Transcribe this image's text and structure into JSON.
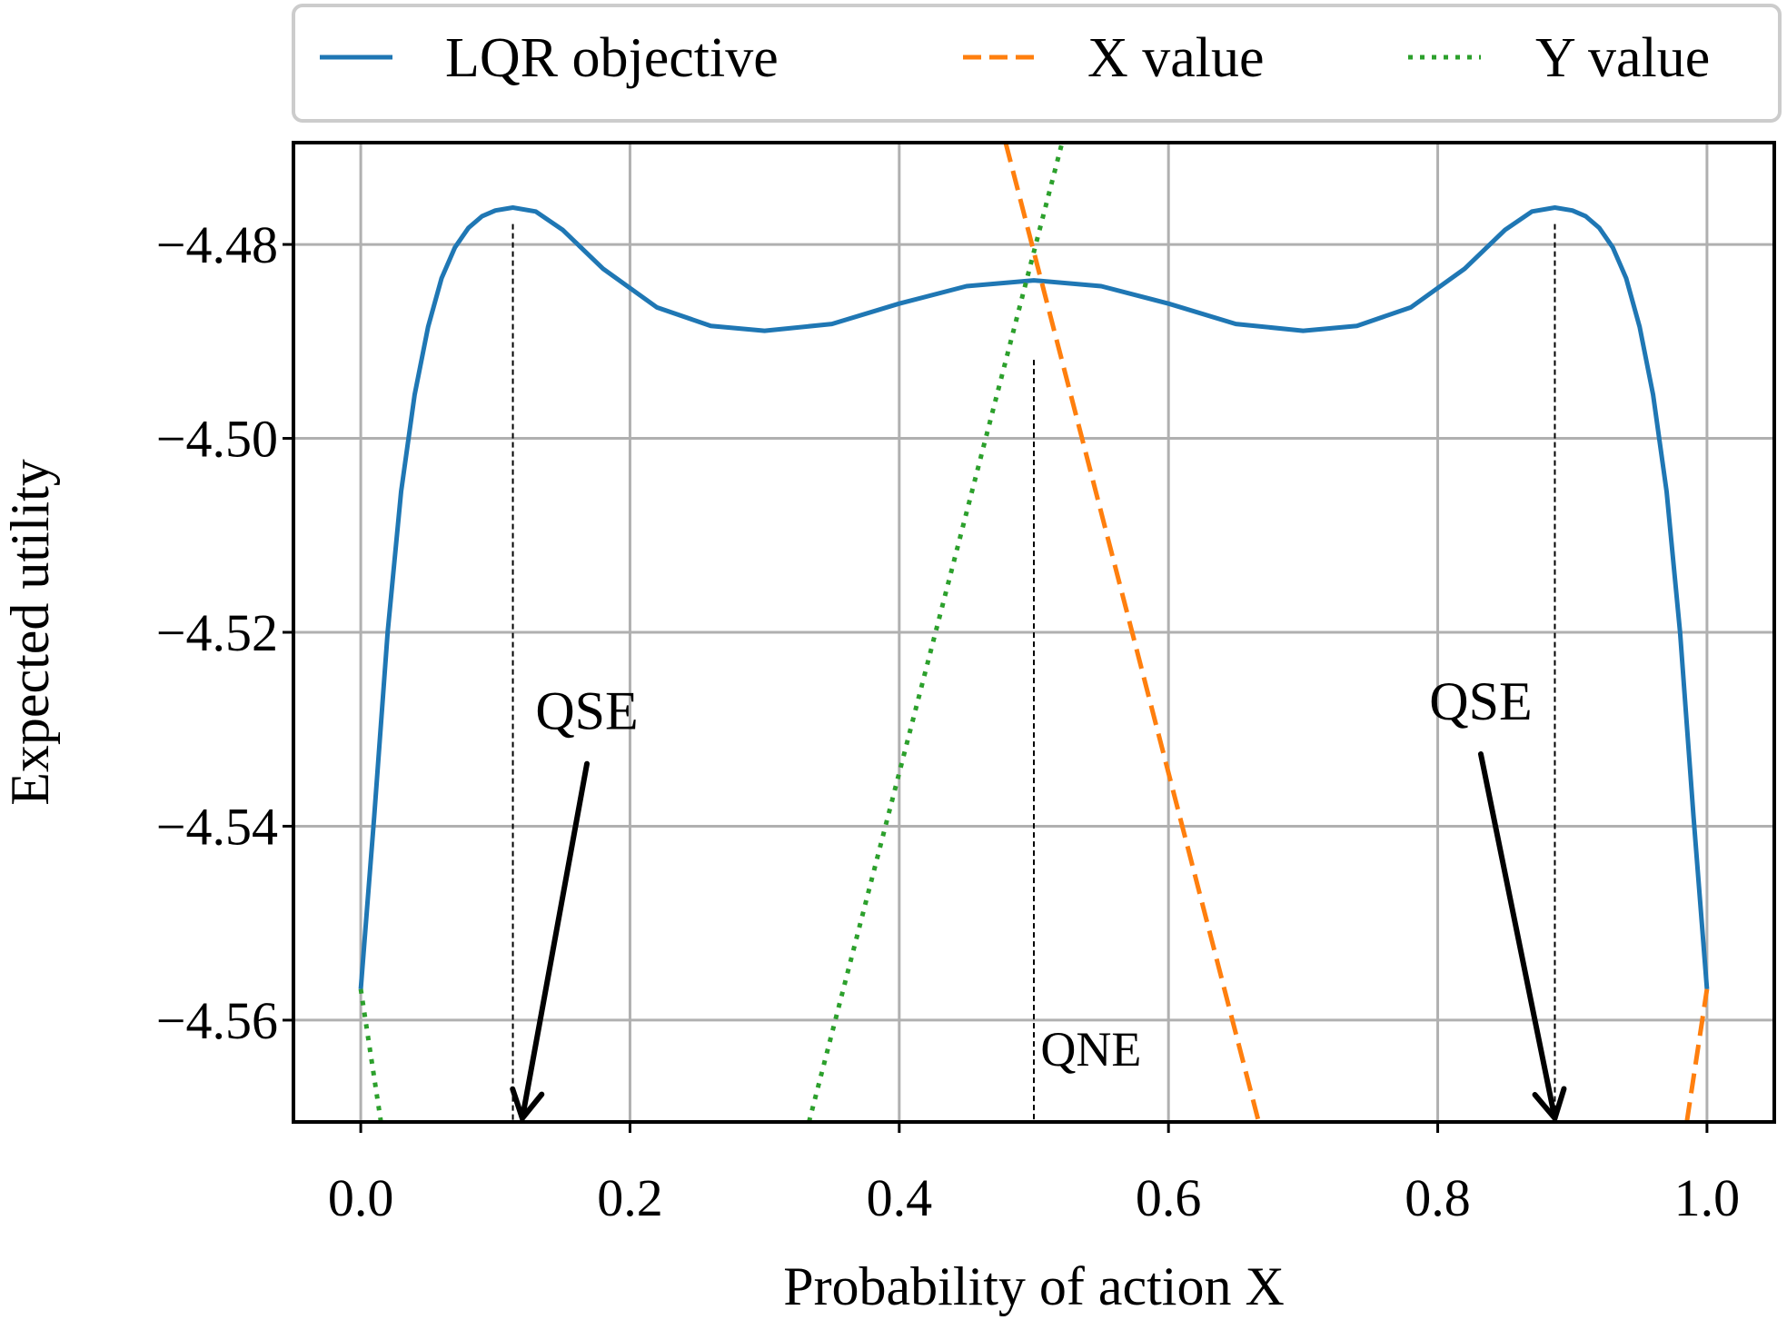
{
  "chart_data": {
    "type": "line",
    "title": "",
    "xlabel": "Probability of action X",
    "ylabel": "Expected utility",
    "xlim": [
      -0.05,
      1.05
    ],
    "ylim": [
      -4.5705,
      -4.4695
    ],
    "xticks": [
      0.0,
      0.2,
      0.4,
      0.6,
      0.8,
      1.0
    ],
    "xtick_labels": [
      "0.0",
      "0.2",
      "0.4",
      "0.6",
      "0.8",
      "1.0"
    ],
    "yticks": [
      -4.48,
      -4.5,
      -4.52,
      -4.54,
      -4.56
    ],
    "ytick_labels": [
      "−4.48",
      "−4.50",
      "−4.52",
      "−4.54",
      "−4.56"
    ],
    "grid": true,
    "legend": {
      "placement": "top, outside plot, horizontal"
    },
    "series": [
      {
        "name": "LQR objective",
        "style": "solid",
        "color": "#1f77b4",
        "x": [
          0.0,
          0.01,
          0.02,
          0.03,
          0.04,
          0.05,
          0.06,
          0.07,
          0.08,
          0.09,
          0.1,
          0.113,
          0.13,
          0.15,
          0.18,
          0.22,
          0.26,
          0.3,
          0.35,
          0.4,
          0.45,
          0.5,
          0.55,
          0.6,
          0.65,
          0.7,
          0.74,
          0.78,
          0.82,
          0.85,
          0.87,
          0.887,
          0.9,
          0.91,
          0.92,
          0.93,
          0.94,
          0.95,
          0.96,
          0.97,
          0.98,
          0.99,
          1.0
        ],
        "y": [
          -4.5568,
          -4.539,
          -4.52,
          -4.5055,
          -4.4955,
          -4.4885,
          -4.4835,
          -4.4803,
          -4.4783,
          -4.4771,
          -4.4765,
          -4.4762,
          -4.4766,
          -4.4785,
          -4.4825,
          -4.4865,
          -4.4884,
          -4.4889,
          -4.4882,
          -4.4861,
          -4.4843,
          -4.4837,
          -4.4843,
          -4.4861,
          -4.4882,
          -4.4889,
          -4.4884,
          -4.4865,
          -4.4825,
          -4.4785,
          -4.4766,
          -4.4762,
          -4.4765,
          -4.4771,
          -4.4783,
          -4.4803,
          -4.4835,
          -4.4885,
          -4.4955,
          -4.5055,
          -4.52,
          -4.539,
          -4.5568
        ]
      },
      {
        "name": "X value",
        "style": "dashed",
        "color": "#ff7f0e",
        "segments": [
          {
            "x": [
              0.479,
              0.667
            ],
            "y": [
              -4.4695,
              -4.5705
            ]
          },
          {
            "x": [
              0.985,
              1.0
            ],
            "y": [
              -4.5705,
              -4.5568
            ]
          }
        ]
      },
      {
        "name": "Y value",
        "style": "dotted",
        "color": "#2ca02c",
        "segments": [
          {
            "x": [
              0.333,
              0.521
            ],
            "y": [
              -4.5705,
              -4.4695
            ]
          },
          {
            "x": [
              0.0,
              0.015
            ],
            "y": [
              -4.5568,
              -4.5705
            ]
          }
        ]
      }
    ],
    "vlines": [
      {
        "x": 0.113,
        "ymin": -4.5705,
        "ymax": -4.4779
      },
      {
        "x": 0.5,
        "ymin": -4.5705,
        "ymax": -4.4919
      },
      {
        "x": 0.887,
        "ymin": -4.5705,
        "ymax": -4.4779
      }
    ],
    "annotations": [
      {
        "text": "QSE",
        "text_x": 0.168,
        "text_y": -4.53,
        "arrow_to_x": 0.12,
        "arrow_to_y": -4.5705,
        "arrow": true
      },
      {
        "text": "QNE",
        "text_x": 0.505,
        "text_y": -4.5647,
        "arrow": false
      },
      {
        "text": "QSE",
        "text_x": 0.832,
        "text_y": -4.529,
        "arrow_to_x": 0.887,
        "arrow_to_y": -4.5705,
        "arrow": true
      }
    ]
  }
}
